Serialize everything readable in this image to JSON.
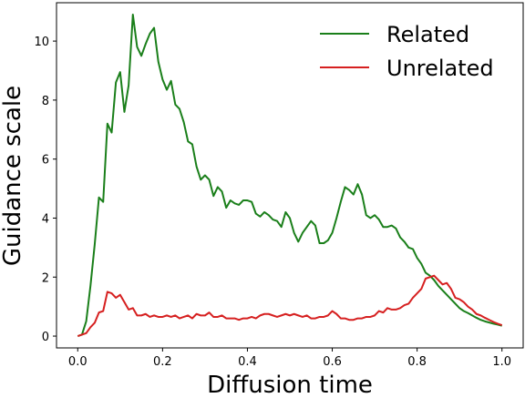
{
  "chart_data": {
    "type": "line",
    "title": "",
    "xlabel": "Diffusion time",
    "ylabel": "Guidance scale",
    "xlim": [
      -0.05,
      1.05
    ],
    "ylim": [
      -0.4,
      11.3
    ],
    "xticks": [
      0.0,
      0.2,
      0.4,
      0.6,
      0.8,
      1.0
    ],
    "xtick_labels": [
      "0.0",
      "0.2",
      "0.4",
      "0.6",
      "0.8",
      "1.0"
    ],
    "yticks": [
      0,
      2,
      4,
      6,
      8,
      10
    ],
    "ytick_labels": [
      "0",
      "2",
      "4",
      "6",
      "8",
      "10"
    ],
    "grid": false,
    "legend_position": "top-right",
    "series": [
      {
        "name": "Related",
        "color": "#1a7f1a",
        "x": [
          0.0,
          0.01,
          0.02,
          0.03,
          0.04,
          0.05,
          0.06,
          0.07,
          0.08,
          0.09,
          0.1,
          0.11,
          0.12,
          0.13,
          0.14,
          0.15,
          0.16,
          0.17,
          0.18,
          0.19,
          0.2,
          0.21,
          0.22,
          0.23,
          0.24,
          0.25,
          0.26,
          0.27,
          0.28,
          0.29,
          0.3,
          0.31,
          0.32,
          0.33,
          0.34,
          0.35,
          0.36,
          0.37,
          0.38,
          0.39,
          0.4,
          0.41,
          0.42,
          0.43,
          0.44,
          0.45,
          0.46,
          0.47,
          0.48,
          0.49,
          0.5,
          0.51,
          0.52,
          0.53,
          0.54,
          0.55,
          0.56,
          0.57,
          0.58,
          0.59,
          0.6,
          0.61,
          0.62,
          0.63,
          0.64,
          0.65,
          0.66,
          0.67,
          0.68,
          0.69,
          0.7,
          0.71,
          0.72,
          0.73,
          0.74,
          0.75,
          0.76,
          0.77,
          0.78,
          0.79,
          0.8,
          0.81,
          0.82,
          0.83,
          0.84,
          0.85,
          0.86,
          0.87,
          0.88,
          0.89,
          0.9,
          0.91,
          0.92,
          0.93,
          0.94,
          0.95,
          0.96,
          0.97,
          0.98,
          0.99,
          1.0
        ],
        "values": [
          0.0,
          0.05,
          0.5,
          1.7,
          3.1,
          4.7,
          4.55,
          7.2,
          6.9,
          8.6,
          8.95,
          7.6,
          8.5,
          10.9,
          9.8,
          9.5,
          9.9,
          10.25,
          10.45,
          9.3,
          8.7,
          8.35,
          8.65,
          7.85,
          7.7,
          7.25,
          6.6,
          6.5,
          5.75,
          5.3,
          5.45,
          5.3,
          4.75,
          5.05,
          4.9,
          4.35,
          4.6,
          4.5,
          4.45,
          4.6,
          4.6,
          4.55,
          4.15,
          4.05,
          4.2,
          4.1,
          3.95,
          3.9,
          3.7,
          4.2,
          4.0,
          3.5,
          3.2,
          3.5,
          3.7,
          3.9,
          3.75,
          3.15,
          3.15,
          3.25,
          3.5,
          4.0,
          4.55,
          5.05,
          4.95,
          4.8,
          5.15,
          4.8,
          4.1,
          4.0,
          4.1,
          3.95,
          3.7,
          3.7,
          3.75,
          3.65,
          3.35,
          3.2,
          3.0,
          2.95,
          2.65,
          2.45,
          2.15,
          2.05,
          1.9,
          1.7,
          1.55,
          1.4,
          1.25,
          1.1,
          0.95,
          0.85,
          0.78,
          0.7,
          0.62,
          0.55,
          0.5,
          0.46,
          0.42,
          0.39,
          0.35
        ]
      },
      {
        "name": "Unrelated",
        "color": "#d62020",
        "x": [
          0.0,
          0.01,
          0.02,
          0.03,
          0.04,
          0.05,
          0.06,
          0.07,
          0.08,
          0.09,
          0.1,
          0.11,
          0.12,
          0.13,
          0.14,
          0.15,
          0.16,
          0.17,
          0.18,
          0.19,
          0.2,
          0.21,
          0.22,
          0.23,
          0.24,
          0.25,
          0.26,
          0.27,
          0.28,
          0.29,
          0.3,
          0.31,
          0.32,
          0.33,
          0.34,
          0.35,
          0.36,
          0.37,
          0.38,
          0.39,
          0.4,
          0.41,
          0.42,
          0.43,
          0.44,
          0.45,
          0.46,
          0.47,
          0.48,
          0.49,
          0.5,
          0.51,
          0.52,
          0.53,
          0.54,
          0.55,
          0.56,
          0.57,
          0.58,
          0.59,
          0.6,
          0.61,
          0.62,
          0.63,
          0.64,
          0.65,
          0.66,
          0.67,
          0.68,
          0.69,
          0.7,
          0.71,
          0.72,
          0.73,
          0.74,
          0.75,
          0.76,
          0.77,
          0.78,
          0.79,
          0.8,
          0.81,
          0.82,
          0.83,
          0.84,
          0.85,
          0.86,
          0.87,
          0.88,
          0.89,
          0.9,
          0.91,
          0.92,
          0.93,
          0.94,
          0.95,
          0.96,
          0.97,
          0.98,
          0.99,
          1.0
        ],
        "values": [
          0.0,
          0.05,
          0.1,
          0.3,
          0.45,
          0.8,
          0.85,
          1.5,
          1.45,
          1.3,
          1.4,
          1.15,
          0.9,
          0.95,
          0.7,
          0.7,
          0.75,
          0.65,
          0.7,
          0.65,
          0.65,
          0.7,
          0.65,
          0.7,
          0.6,
          0.65,
          0.7,
          0.6,
          0.75,
          0.7,
          0.7,
          0.8,
          0.65,
          0.65,
          0.7,
          0.6,
          0.6,
          0.6,
          0.55,
          0.6,
          0.6,
          0.65,
          0.6,
          0.7,
          0.75,
          0.75,
          0.7,
          0.65,
          0.7,
          0.75,
          0.7,
          0.75,
          0.7,
          0.65,
          0.7,
          0.6,
          0.6,
          0.65,
          0.65,
          0.7,
          0.85,
          0.75,
          0.6,
          0.6,
          0.55,
          0.55,
          0.6,
          0.6,
          0.65,
          0.65,
          0.7,
          0.85,
          0.8,
          0.95,
          0.9,
          0.9,
          0.95,
          1.05,
          1.1,
          1.3,
          1.45,
          1.6,
          1.95,
          2.0,
          2.05,
          1.9,
          1.75,
          1.8,
          1.6,
          1.3,
          1.25,
          1.15,
          1.0,
          0.9,
          0.75,
          0.7,
          0.62,
          0.55,
          0.48,
          0.42,
          0.37
        ]
      }
    ]
  }
}
